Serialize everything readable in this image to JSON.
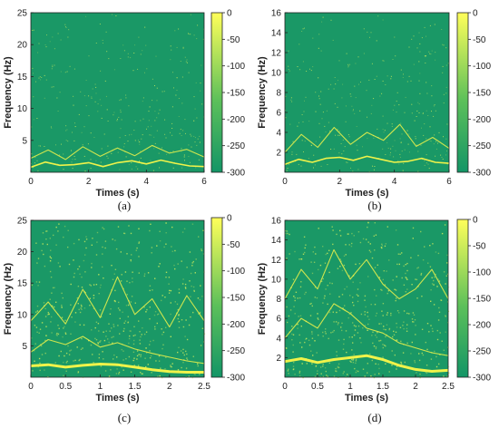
{
  "chart_data": [
    {
      "id": "a",
      "type": "heatmap",
      "caption": "(a)",
      "xlabel": "Times (s)",
      "ylabel": "Frequency (Hz)",
      "xlim": [
        0,
        6
      ],
      "ylim": [
        0,
        25
      ],
      "xticks": [
        0,
        2,
        4,
        6
      ],
      "yticks": [
        5,
        10,
        15,
        20,
        25
      ],
      "colorbar": {
        "range": [
          -300,
          0
        ],
        "ticks": [
          0,
          -50,
          -100,
          -150,
          -200,
          -250,
          -300
        ]
      },
      "ridges": [
        {
          "t": [
            0,
            0.5,
            1,
            1.5,
            2,
            2.5,
            3,
            3.5,
            4,
            4.5,
            5,
            5.5,
            6
          ],
          "f": [
            0.8,
            1.6,
            1.1,
            1.2,
            1.5,
            0.9,
            1.5,
            1.8,
            1.3,
            1.9,
            1.4,
            1.0,
            0.9
          ]
        },
        {
          "t": [
            0,
            0.6,
            1.2,
            1.8,
            2.4,
            3.0,
            3.6,
            4.2,
            4.8,
            5.4,
            6
          ],
          "f": [
            2.2,
            3.5,
            2.0,
            4.0,
            2.5,
            3.8,
            2.6,
            4.2,
            3.0,
            3.6,
            2.4
          ]
        }
      ]
    },
    {
      "id": "b",
      "type": "heatmap",
      "caption": "(b)",
      "xlabel": "Times (s)",
      "ylabel": "Frequency (Hz)",
      "xlim": [
        0,
        6
      ],
      "ylim": [
        0,
        16
      ],
      "xticks": [
        0,
        2,
        4,
        6
      ],
      "yticks": [
        2,
        4,
        6,
        8,
        10,
        12,
        14,
        16
      ],
      "colorbar": {
        "range": [
          -300,
          0
        ],
        "ticks": [
          0,
          -50,
          -100,
          -150,
          -200,
          -250,
          -300
        ]
      },
      "ridges": [
        {
          "t": [
            0,
            0.5,
            1,
            1.5,
            2,
            2.5,
            3,
            3.5,
            4,
            4.5,
            5,
            5.5,
            6
          ],
          "f": [
            0.8,
            1.3,
            1.0,
            1.4,
            1.5,
            1.2,
            1.6,
            1.3,
            1.0,
            1.1,
            1.4,
            1.0,
            0.9
          ]
        },
        {
          "t": [
            0,
            0.6,
            1.2,
            1.8,
            2.4,
            3.0,
            3.6,
            4.2,
            4.8,
            5.4,
            6
          ],
          "f": [
            2.0,
            3.8,
            2.5,
            4.5,
            2.8,
            4.0,
            3.2,
            4.8,
            2.6,
            3.5,
            2.4
          ]
        }
      ]
    },
    {
      "id": "c",
      "type": "heatmap",
      "caption": "(c)",
      "xlabel": "Times (s)",
      "ylabel": "Frequency (Hz)",
      "xlim": [
        0,
        2.5
      ],
      "ylim": [
        0,
        25
      ],
      "xticks": [
        0,
        0.5,
        1,
        1.5,
        2,
        2.5
      ],
      "yticks": [
        5,
        10,
        15,
        20,
        25
      ],
      "colorbar": {
        "range": [
          -300,
          0
        ],
        "ticks": [
          0,
          -50,
          -100,
          -150,
          -200,
          -250,
          -300
        ]
      },
      "ridges": [
        {
          "t": [
            0,
            0.25,
            0.5,
            0.75,
            1,
            1.25,
            1.5,
            1.75,
            2,
            2.25,
            2.5
          ],
          "f": [
            1.8,
            2.0,
            1.6,
            1.9,
            2.1,
            2.0,
            1.6,
            1.2,
            0.9,
            0.8,
            0.8
          ]
        },
        {
          "t": [
            0,
            0.25,
            0.5,
            0.75,
            1,
            1.25,
            1.5,
            1.75,
            2,
            2.25,
            2.5
          ],
          "f": [
            4.0,
            6.0,
            5.2,
            6.5,
            4.8,
            5.5,
            4.5,
            3.8,
            3.2,
            2.6,
            2.2
          ]
        },
        {
          "t": [
            0,
            0.25,
            0.5,
            0.75,
            1,
            1.25,
            1.5,
            1.75,
            2,
            2.25,
            2.5
          ],
          "f": [
            9.0,
            12.0,
            8.5,
            14.0,
            9.5,
            16.0,
            10.0,
            12.5,
            8.0,
            13.0,
            9.0
          ]
        }
      ]
    },
    {
      "id": "d",
      "type": "heatmap",
      "caption": "(d)",
      "xlabel": "Times (s)",
      "ylabel": "Frequency (Hz)",
      "xlim": [
        0,
        2.5
      ],
      "ylim": [
        0,
        16
      ],
      "xticks": [
        0,
        0.5,
        1,
        1.5,
        2,
        2.5
      ],
      "yticks": [
        2,
        4,
        6,
        8,
        10,
        12,
        14,
        16
      ],
      "colorbar": {
        "range": [
          -300,
          0
        ],
        "ticks": [
          0,
          -50,
          -100,
          -150,
          -200,
          -250,
          -300
        ]
      },
      "ridges": [
        {
          "t": [
            0,
            0.25,
            0.5,
            0.75,
            1,
            1.25,
            1.5,
            1.75,
            2,
            2.25,
            2.5
          ],
          "f": [
            1.6,
            1.9,
            1.5,
            1.8,
            2.0,
            2.2,
            1.8,
            1.2,
            0.8,
            0.6,
            0.7
          ]
        },
        {
          "t": [
            0,
            0.25,
            0.5,
            0.75,
            1,
            1.25,
            1.5,
            1.75,
            2,
            2.25,
            2.5
          ],
          "f": [
            4.0,
            6.0,
            5.0,
            7.5,
            6.5,
            5.0,
            4.5,
            3.5,
            3.0,
            2.5,
            2.2
          ]
        },
        {
          "t": [
            0,
            0.25,
            0.5,
            0.75,
            1,
            1.25,
            1.5,
            1.75,
            2,
            2.25,
            2.5
          ],
          "f": [
            8.0,
            11.0,
            9.0,
            13.0,
            10.0,
            12.0,
            9.5,
            8.0,
            9.0,
            11.0,
            8.0
          ]
        }
      ]
    }
  ],
  "colors": {
    "background": "#1a9866",
    "ridge": "#f0f34a",
    "speckle": "#c7e85c",
    "colorbar_top": "#ffff5a",
    "colorbar_bottom": "#139566"
  }
}
